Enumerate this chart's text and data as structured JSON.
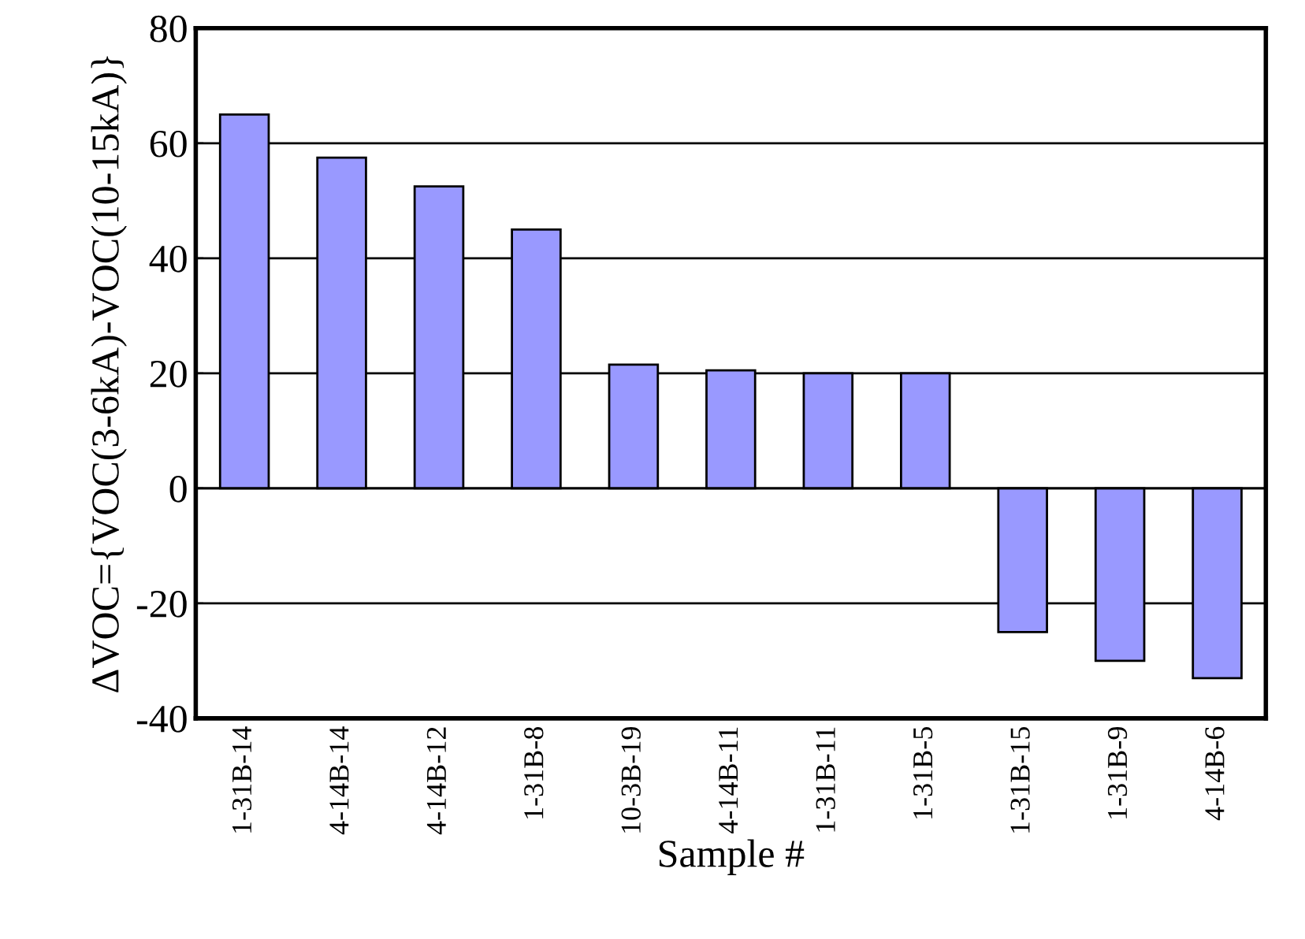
{
  "chart_data": {
    "type": "bar",
    "xlabel": "Sample #",
    "ylabel": "ΔVOC={VOC(3-6kA)-VOC(10-15kA)}",
    "categories": [
      "1-31B-14",
      "4-14B-14",
      "4-14B-12",
      "1-31B-8",
      "10-3B-19",
      "4-14B-11",
      "1-31B-11",
      "1-31B-5",
      "1-31B-15",
      "1-31B-9",
      "4-14B-6"
    ],
    "values": [
      65,
      57.5,
      52.5,
      45,
      21.5,
      20.5,
      20,
      20,
      -25,
      -30,
      -33
    ],
    "color": "#9999ff",
    "ylim": [
      -40,
      80
    ],
    "yticks": [
      -40,
      -20,
      0,
      20,
      40,
      60,
      80
    ],
    "grid": "y"
  }
}
